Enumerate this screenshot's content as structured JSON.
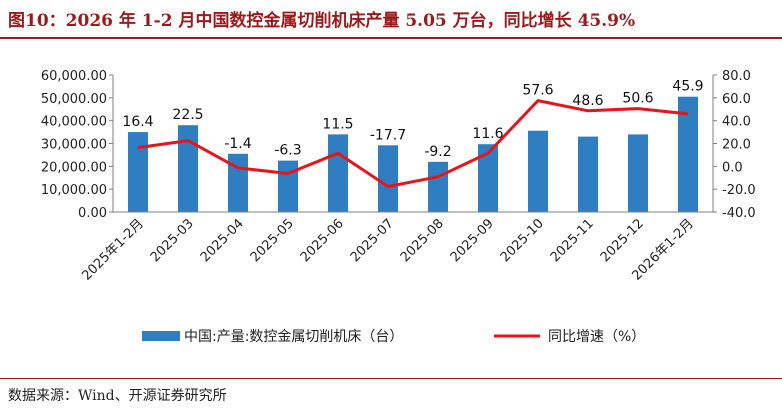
{
  "title": "图10：2026 年 1-2 月中国数控金属切削机床产量 5.05 万台，同比增长 45.9%",
  "source": "数据来源：Wind、开源证券研究所",
  "colors": {
    "bar": "#2e7ec1",
    "line": "#e8141b",
    "title": "#9c1a1a"
  },
  "chart_data": {
    "type": "bar+line",
    "categories": [
      "2025年1-2月",
      "2025-03",
      "2025-04",
      "2025-05",
      "2025-06",
      "2025-07",
      "2025-08",
      "2025-09",
      "2025-10",
      "2025-11",
      "2025-12",
      "2026年1-2月"
    ],
    "series": [
      {
        "name": "中国:产量:数控金属切削机床（台）",
        "type": "bar",
        "axis": "left",
        "values": [
          35000,
          38000,
          25500,
          22500,
          34000,
          29200,
          22000,
          29700,
          35600,
          33000,
          34000,
          50500
        ]
      },
      {
        "name": "同比增速（%）",
        "type": "line",
        "axis": "right",
        "values": [
          16.4,
          22.5,
          -1.4,
          -6.3,
          11.5,
          -17.7,
          -9.2,
          11.6,
          57.6,
          48.6,
          50.6,
          45.9
        ],
        "labels": [
          "16.4",
          "22.5",
          "-1.4",
          "-6.3",
          "11.5",
          "-17.7",
          "-9.2",
          "11.6",
          "57.6",
          "48.6",
          "50.6",
          "45.9"
        ]
      }
    ],
    "y_left": {
      "ylim": [
        0,
        60000
      ],
      "ticks": [
        "60,000.00",
        "50,000.00",
        "40,000.00",
        "30,000.00",
        "20,000.00",
        "10,000.00",
        "0.00"
      ]
    },
    "y_right": {
      "ylim": [
        -40,
        80
      ],
      "ticks": [
        "80.0",
        "60.0",
        "40.0",
        "20.0",
        "0.0",
        "-20.0",
        "-40.0"
      ]
    },
    "grid": false,
    "legend": "bottom"
  }
}
